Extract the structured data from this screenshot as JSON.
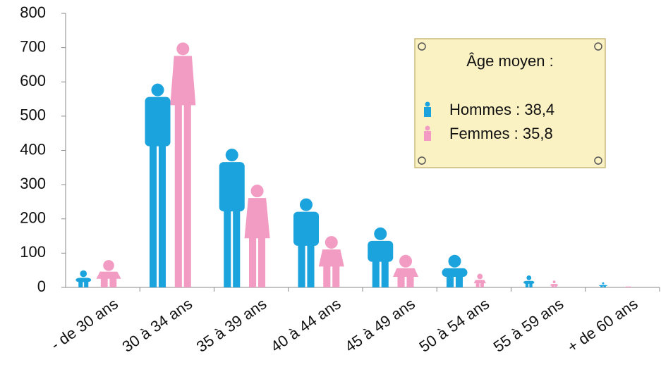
{
  "chart_data": {
    "type": "bar",
    "categories": [
      "- de 30 ans",
      "30 à 34 ans",
      "35 à 39 ans",
      "40 à 44 ans",
      "45 à 49 ans",
      "50 à 54 ans",
      "55 à 59 ans",
      "+ de 60 ans"
    ],
    "series": [
      {
        "name": "Hommes : 38,4",
        "color": "#1aa3dc",
        "values": [
          50,
          595,
          405,
          260,
          175,
          95,
          35,
          15
        ]
      },
      {
        "name": "Femmes : 35,8",
        "color": "#f29bc3",
        "values": [
          80,
          715,
          300,
          150,
          95,
          40,
          20,
          5
        ]
      }
    ],
    "legend_title": "Âge moyen :",
    "legend_position": "upper right",
    "ylim": [
      0,
      800
    ],
    "yticks": [
      0,
      100,
      200,
      300,
      400,
      500,
      600,
      700,
      800
    ]
  }
}
